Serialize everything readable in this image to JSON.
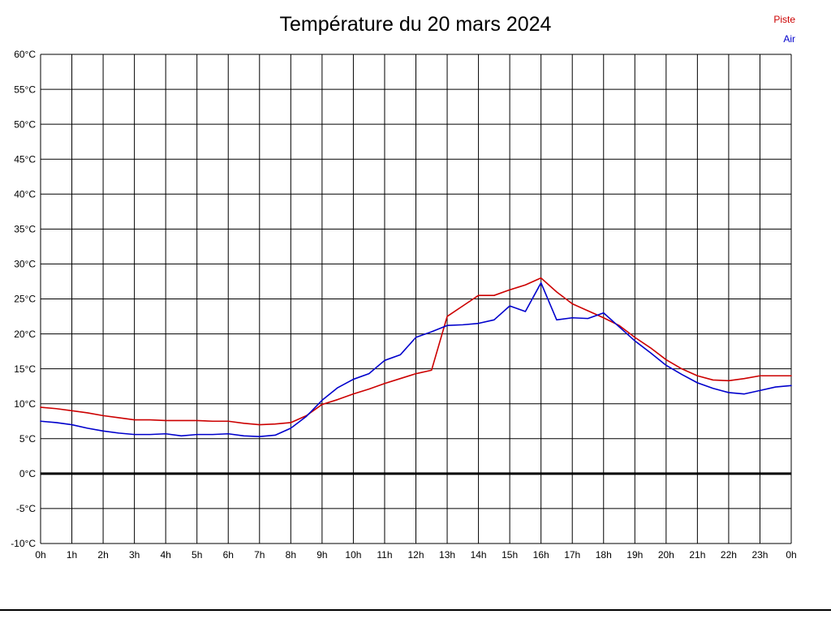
{
  "chart_data": {
    "type": "line",
    "title": "Température du 20 mars 2024",
    "xlabel": "",
    "ylabel": "",
    "ylim": [
      -10,
      60
    ],
    "y_step": 5,
    "x_range_hours": [
      0,
      24
    ],
    "interval_hours": 0.5,
    "grid": true,
    "zero_line": true,
    "y_tick_labels": [
      "60°C",
      "55°C",
      "50°C",
      "45°C",
      "40°C",
      "35°C",
      "30°C",
      "25°C",
      "20°C",
      "15°C",
      "10°C",
      "5°C",
      "0°C",
      "-5°C",
      "-10°C"
    ],
    "x_tick_labels": [
      "0h",
      "1h",
      "2h",
      "3h",
      "4h",
      "5h",
      "6h",
      "7h",
      "8h",
      "9h",
      "10h",
      "11h",
      "12h",
      "13h",
      "14h",
      "15h",
      "16h",
      "17h",
      "18h",
      "19h",
      "20h",
      "21h",
      "22h",
      "23h",
      "0h"
    ],
    "legend_position": "top-right",
    "series": [
      {
        "name": "Piste",
        "color": "#cc0000",
        "values": [
          9.5,
          9.3,
          9.0,
          8.7,
          8.3,
          8.0,
          7.7,
          7.7,
          7.6,
          7.6,
          7.6,
          7.5,
          7.5,
          7.2,
          7.0,
          7.1,
          7.3,
          8.3,
          9.9,
          10.6,
          11.4,
          12.1,
          12.9,
          13.6,
          14.3,
          14.8,
          22.5,
          24.0,
          25.5,
          25.5,
          26.3,
          27.0,
          28.0,
          26.0,
          24.3,
          23.3,
          22.3,
          21.2,
          19.5,
          18.0,
          16.3,
          15.0,
          14.0,
          13.4,
          13.3,
          13.6,
          14.0,
          14.0,
          14.0
        ]
      },
      {
        "name": "Air",
        "color": "#0000cc",
        "values": [
          7.5,
          7.3,
          7.0,
          6.5,
          6.1,
          5.8,
          5.6,
          5.6,
          5.7,
          5.4,
          5.6,
          5.6,
          5.7,
          5.4,
          5.3,
          5.5,
          6.5,
          8.2,
          10.5,
          12.3,
          13.5,
          14.3,
          16.2,
          17.0,
          19.5,
          20.3,
          21.2,
          21.3,
          21.5,
          22.0,
          24.0,
          23.2,
          27.3,
          22.0,
          22.3,
          22.2,
          23.0,
          21.0,
          19.0,
          17.3,
          15.5,
          14.2,
          13.0,
          12.2,
          11.6,
          11.4,
          11.9,
          12.4,
          12.6
        ]
      }
    ]
  },
  "legend": {
    "items": [
      {
        "label": "Piste",
        "color": "#cc0000"
      },
      {
        "label": "Air",
        "color": "#0000cc"
      }
    ]
  }
}
